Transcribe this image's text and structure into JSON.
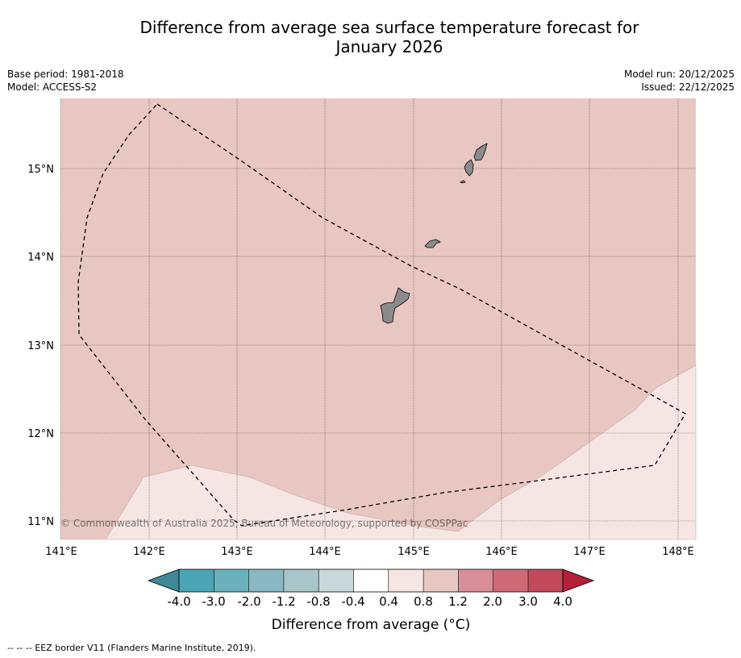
{
  "title_line1": "Difference from average sea surface temperature forecast for",
  "title_line2": "January 2026",
  "meta": {
    "base_period": "Base period: 1981-2018",
    "model": "Model: ACCESS-S2",
    "model_run": "Model run: 20/12/2025",
    "issued": "Issued: 22/12/2025"
  },
  "lat_labels": [
    "15°N",
    "14°N",
    "13°N",
    "12°N",
    "11°N"
  ],
  "lon_labels": [
    "141°E",
    "142°E",
    "143°E",
    "144°E",
    "145°E",
    "146°E",
    "147°E",
    "148°E"
  ],
  "copyright": "© Commonwealth of Australia 2025, Bureau of Meteorology, supported by COSPPac",
  "colorbar": {
    "ticks": [
      "-4.0",
      "-3.0",
      "-2.0",
      "-1.2",
      "-0.8",
      "-0.4",
      "0.4",
      "0.8",
      "1.2",
      "2.0",
      "3.0",
      "4.0"
    ],
    "colors": [
      "#4aa5b4",
      "#6bb0bd",
      "#8ab8c3",
      "#a8c6ca",
      "#c8d8db",
      "#ffffff",
      "#f5e6e4",
      "#e8c6c1",
      "#d88e98",
      "#cd6a76",
      "#c24a5a",
      "#b42039"
    ],
    "under_color": "#3d8a96",
    "title": "Difference from average (°C)"
  },
  "map": {
    "main_fill": "#e8c6c1",
    "lower_fill": "#f5e6e4",
    "land_color": "#8c8c8c"
  },
  "footer": "--  --  -- EEZ border V11 (Flanders Marine Institute, 2019)."
}
